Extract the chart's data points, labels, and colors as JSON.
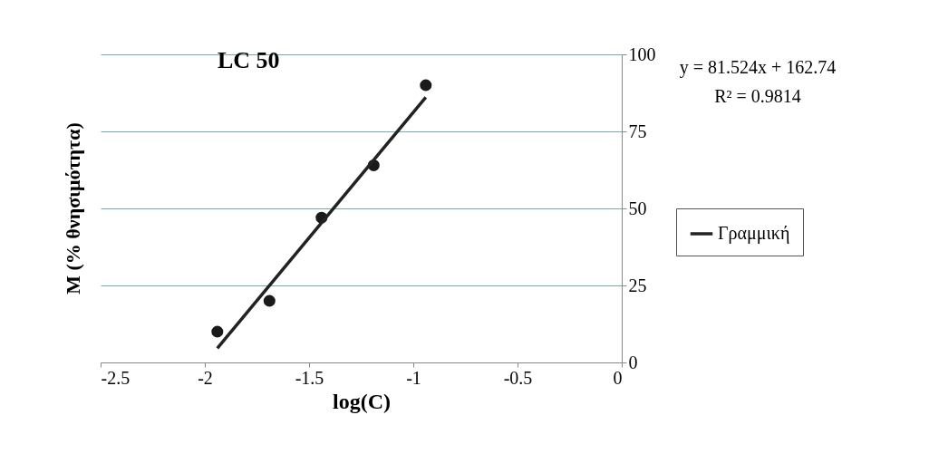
{
  "chart_data": {
    "type": "scatter",
    "title": "LC 50",
    "xlabel": "log(C)",
    "ylabel": "M (% θνησιμότητα)",
    "xlim": [
      -2.5,
      0
    ],
    "xticks": [
      -2.5,
      -2,
      -1.5,
      -1,
      -0.5,
      0
    ],
    "ylim": [
      0,
      100
    ],
    "yticks": [
      0,
      25,
      50,
      75,
      100
    ],
    "grid": "y",
    "legend": "right",
    "series": [
      {
        "marker": "circle",
        "color": "#1a1a1a",
        "x": [
          -1.94,
          -1.69,
          -1.44,
          -1.19,
          -0.94
        ],
        "values": [
          10,
          20,
          47,
          64,
          90
        ]
      },
      {
        "type": "line",
        "name": "Γραμμική",
        "color": "#222222",
        "x": [
          -1.94,
          -0.94
        ],
        "values": [
          4.6,
          86.1
        ],
        "line_style": "solid"
      }
    ],
    "annotations": [
      "y = 81.524x + 162.74",
      "R² = 0.9814"
    ]
  }
}
